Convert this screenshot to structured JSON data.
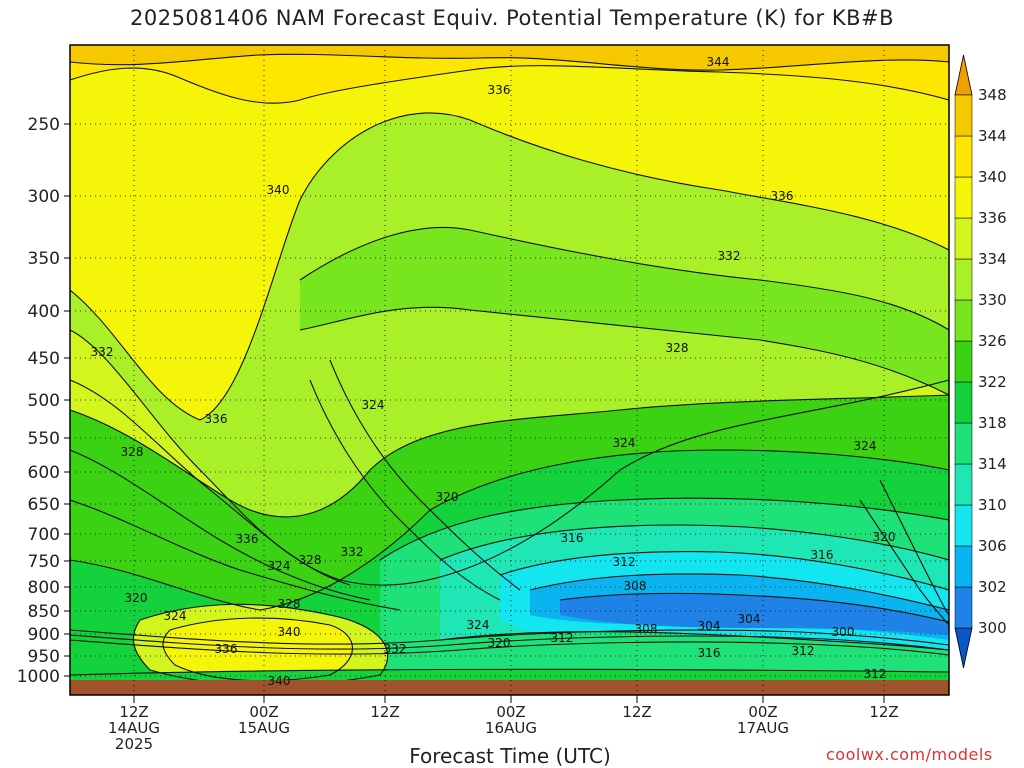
{
  "title": "2025081406 NAM Forecast Equiv. Potential Temperature (K) for KB#B",
  "credit": "coolwx.com/models",
  "colors": {
    "terrain": "#a0522d",
    "contour": "#111111"
  },
  "chart_data": {
    "type": "heatmap",
    "title": "2025081406 NAM Forecast Equiv. Potential Temperature (K) for KB#B",
    "xlabel": "Forecast Time (UTC)",
    "ylabel": "",
    "y_axis": {
      "scale": "log",
      "reversed": true,
      "ticks": [
        250,
        300,
        350,
        400,
        450,
        500,
        550,
        600,
        650,
        700,
        750,
        800,
        850,
        900,
        950,
        1000
      ]
    },
    "x_axis": {
      "ticks": [
        {
          "line1": "12Z",
          "line2": "14AUG",
          "line3": "2025"
        },
        {
          "line1": "00Z",
          "line2": "15AUG",
          "line3": ""
        },
        {
          "line1": "12Z",
          "line2": "",
          "line3": ""
        },
        {
          "line1": "00Z",
          "line2": "16AUG",
          "line3": ""
        },
        {
          "line1": "12Z",
          "line2": "",
          "line3": ""
        },
        {
          "line1": "00Z",
          "line2": "17AUG",
          "line3": ""
        },
        {
          "line1": "12Z",
          "line2": "",
          "line3": ""
        }
      ]
    },
    "grid": "dotted",
    "colorbar": {
      "levels": [
        300,
        302,
        306,
        310,
        314,
        318,
        322,
        326,
        330,
        334,
        336,
        340,
        344,
        348
      ],
      "colors": [
        "#0a55c8",
        "#1f82e6",
        "#0ab4f0",
        "#14e6f0",
        "#1ee6b4",
        "#1ee178",
        "#14d23c",
        "#3cd214",
        "#78e61e",
        "#aaf028",
        "#d2f51e",
        "#f5f50a",
        "#ffe600",
        "#f5c800",
        "#f0a000"
      ]
    },
    "contour_labels": [
      {
        "value": "344"
      },
      {
        "value": "336"
      },
      {
        "value": "340"
      },
      {
        "value": "336"
      },
      {
        "value": "332"
      },
      {
        "value": "332"
      },
      {
        "value": "328"
      },
      {
        "value": "324"
      },
      {
        "value": "336"
      },
      {
        "value": "328"
      },
      {
        "value": "324"
      },
      {
        "value": "324"
      },
      {
        "value": "320"
      },
      {
        "value": "316"
      },
      {
        "value": "312"
      },
      {
        "value": "336"
      },
      {
        "value": "328"
      },
      {
        "value": "332"
      },
      {
        "value": "324"
      },
      {
        "value": "316"
      },
      {
        "value": "320"
      },
      {
        "value": "308"
      },
      {
        "value": "320"
      },
      {
        "value": "324"
      },
      {
        "value": "328"
      },
      {
        "value": "340"
      },
      {
        "value": "324"
      },
      {
        "value": "312"
      },
      {
        "value": "308"
      },
      {
        "value": "304"
      },
      {
        "value": "304"
      },
      {
        "value": "300"
      },
      {
        "value": "336"
      },
      {
        "value": "332"
      },
      {
        "value": "320"
      },
      {
        "value": "316"
      },
      {
        "value": "312"
      },
      {
        "value": "312"
      },
      {
        "value": "340"
      }
    ]
  }
}
